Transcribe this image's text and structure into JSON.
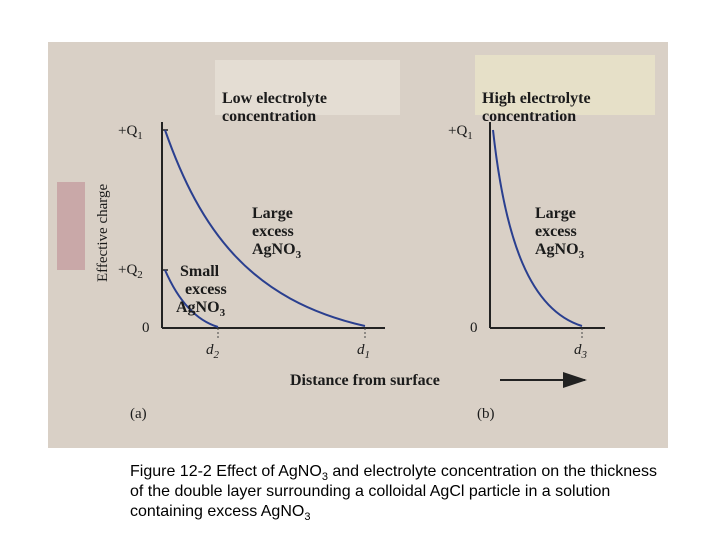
{
  "panel_a": {
    "title": [
      "Low electrolyte",
      "concentration"
    ],
    "y_label": "Effective charge",
    "q1": {
      "text": "+Q",
      "sub": "1"
    },
    "q2": {
      "text": "+Q",
      "sub": "2"
    },
    "origin": "0",
    "large": [
      "Large",
      "excess",
      "AgNO",
      "3"
    ],
    "small": [
      "Small",
      "excess",
      "AgNO",
      "3"
    ],
    "d2": {
      "text": "d",
      "sub": "2"
    },
    "d1": {
      "text": "d",
      "sub": "1"
    },
    "label": "(a)"
  },
  "x_label": "Distance from surface",
  "panel_b": {
    "title": [
      "High electrolyte",
      "concentration"
    ],
    "q1": {
      "text": "+Q",
      "sub": "1"
    },
    "origin": "0",
    "large": [
      "Large",
      "excess",
      "AgNO",
      "3"
    ],
    "d3": {
      "text": "d",
      "sub": "3"
    },
    "label": "(b)"
  },
  "caption": [
    "Figure 12-2 Effect of AgNO",
    "3",
    " and electrolyte concentration on the thickness of the double layer surrounding a colloidal AgCl particle in a solution containing excess AgNO",
    "3"
  ]
}
